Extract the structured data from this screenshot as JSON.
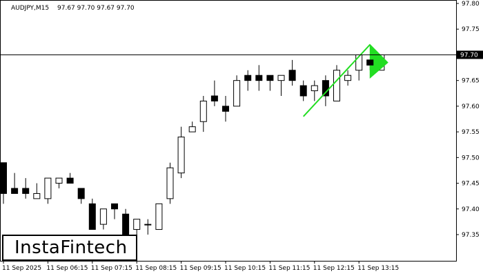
{
  "header": {
    "symbol": "AUDJPY,M15",
    "ohlc": "97.67 97.70 97.67 97.70"
  },
  "logo": {
    "text": "InstaFintech"
  },
  "colors": {
    "pattern": "#22dd22",
    "candle_bull": "#ffffff",
    "candle_bear": "#000000",
    "price_line": "#000000"
  },
  "chart_data": {
    "type": "candlestick",
    "current_price": 97.7,
    "current_price_label": "97.70",
    "ylim": [
      97.29,
      97.8
    ],
    "y_ticks": [
      "97.80",
      "97.75",
      "97.65",
      "97.60",
      "97.55",
      "97.50",
      "97.45",
      "97.40",
      "97.35"
    ],
    "y_tick_values": [
      97.8,
      97.75,
      97.65,
      97.6,
      97.55,
      97.5,
      97.45,
      97.4,
      97.35
    ],
    "x_ticks": [
      "11 Sep 2025",
      "11 Sep 06:15",
      "11 Sep 07:15",
      "11 Sep 08:15",
      "11 Sep 09:15",
      "11 Sep 10:15",
      "11 Sep 11:15",
      "11 Sep 12:15",
      "11 Sep 13:15"
    ],
    "x_tick_bar_index": [
      0,
      4,
      8,
      12,
      16,
      20,
      24,
      28,
      32
    ],
    "candles": [
      {
        "o": 97.49,
        "h": 97.49,
        "l": 97.41,
        "c": 97.43
      },
      {
        "o": 97.44,
        "h": 97.47,
        "l": 97.43,
        "c": 97.43
      },
      {
        "o": 97.44,
        "h": 97.46,
        "l": 97.42,
        "c": 97.43
      },
      {
        "o": 97.42,
        "h": 97.45,
        "l": 97.42,
        "c": 97.43
      },
      {
        "o": 97.42,
        "h": 97.46,
        "l": 97.41,
        "c": 97.46
      },
      {
        "o": 97.45,
        "h": 97.46,
        "l": 97.44,
        "c": 97.46
      },
      {
        "o": 97.46,
        "h": 97.47,
        "l": 97.45,
        "c": 97.45
      },
      {
        "o": 97.44,
        "h": 97.44,
        "l": 97.41,
        "c": 97.42
      },
      {
        "o": 97.41,
        "h": 97.42,
        "l": 97.36,
        "c": 97.36
      },
      {
        "o": 97.37,
        "h": 97.4,
        "l": 97.36,
        "c": 97.4
      },
      {
        "o": 97.41,
        "h": 97.41,
        "l": 97.38,
        "c": 97.4
      },
      {
        "o": 97.39,
        "h": 97.4,
        "l": 97.34,
        "c": 97.34
      },
      {
        "o": 97.36,
        "h": 97.38,
        "l": 97.35,
        "c": 97.38
      },
      {
        "o": 97.37,
        "h": 97.38,
        "l": 97.35,
        "c": 97.37
      },
      {
        "o": 97.36,
        "h": 97.41,
        "l": 97.36,
        "c": 97.41
      },
      {
        "o": 97.42,
        "h": 97.49,
        "l": 97.41,
        "c": 97.48
      },
      {
        "o": 97.47,
        "h": 97.56,
        "l": 97.46,
        "c": 97.54
      },
      {
        "o": 97.55,
        "h": 97.57,
        "l": 97.55,
        "c": 97.56
      },
      {
        "o": 97.57,
        "h": 97.62,
        "l": 97.55,
        "c": 97.61
      },
      {
        "o": 97.62,
        "h": 97.65,
        "l": 97.6,
        "c": 97.61
      },
      {
        "o": 97.6,
        "h": 97.62,
        "l": 97.57,
        "c": 97.59
      },
      {
        "o": 97.6,
        "h": 97.66,
        "l": 97.6,
        "c": 97.65
      },
      {
        "o": 97.66,
        "h": 97.67,
        "l": 97.63,
        "c": 97.65
      },
      {
        "o": 97.66,
        "h": 97.68,
        "l": 97.63,
        "c": 97.65
      },
      {
        "o": 97.66,
        "h": 97.66,
        "l": 97.63,
        "c": 97.65
      },
      {
        "o": 97.65,
        "h": 97.66,
        "l": 97.62,
        "c": 97.66
      },
      {
        "o": 97.67,
        "h": 97.69,
        "l": 97.64,
        "c": 97.65
      },
      {
        "o": 97.64,
        "h": 97.65,
        "l": 97.61,
        "c": 97.62
      },
      {
        "o": 97.63,
        "h": 97.65,
        "l": 97.61,
        "c": 97.64
      },
      {
        "o": 97.65,
        "h": 97.66,
        "l": 97.6,
        "c": 97.62
      },
      {
        "o": 97.61,
        "h": 97.68,
        "l": 97.61,
        "c": 97.67
      },
      {
        "o": 97.65,
        "h": 97.67,
        "l": 97.64,
        "c": 97.66
      },
      {
        "o": 97.67,
        "h": 97.7,
        "l": 97.65,
        "c": 97.7
      },
      {
        "o": 97.69,
        "h": 97.69,
        "l": 97.67,
        "c": 97.68
      },
      {
        "o": 97.67,
        "h": 97.7,
        "l": 97.67,
        "c": 97.7
      }
    ],
    "pattern": {
      "pole_start": {
        "bar": 27,
        "price": 97.58
      },
      "pole_end": {
        "bar": 33,
        "price": 97.72
      },
      "flag_tip": {
        "bar": 34.6,
        "price": 97.685
      },
      "flag_top": 97.72,
      "flag_bottom": 97.655
    }
  }
}
